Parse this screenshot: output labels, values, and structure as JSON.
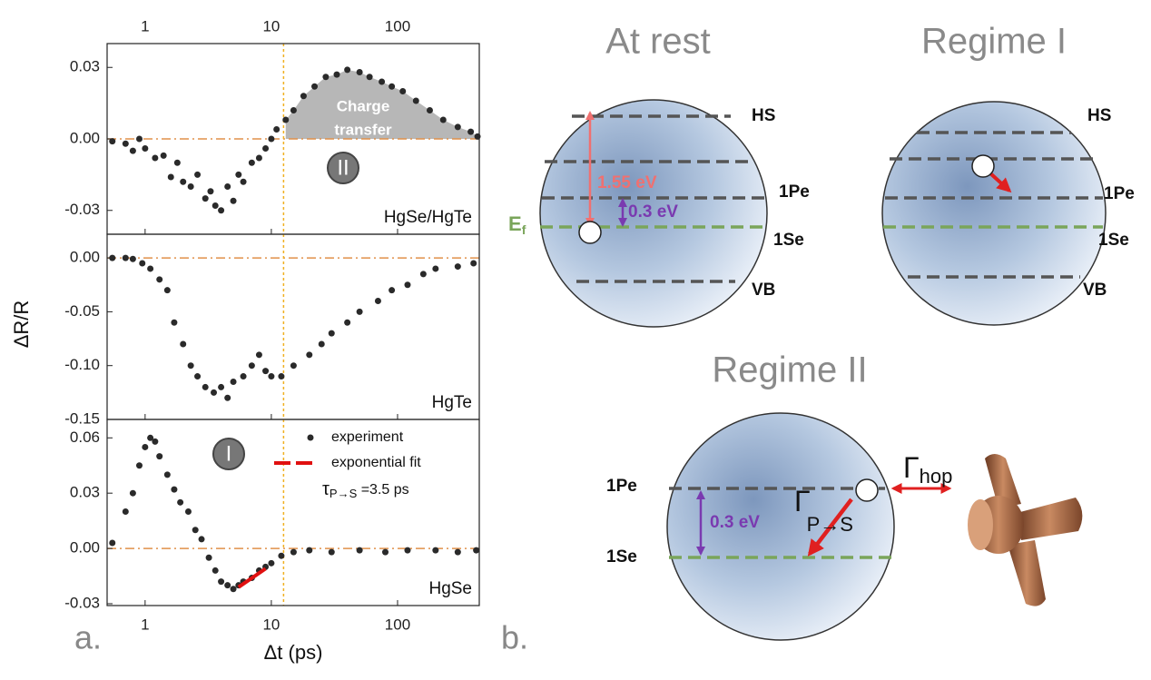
{
  "chart_data": [
    {
      "type": "scatter",
      "label": "HgSe/HgTe",
      "xscale": "log",
      "xlim": [
        0.5,
        444
      ],
      "xticks": [
        1,
        10,
        100
      ],
      "ylim": [
        -0.04,
        0.04
      ],
      "yticks": [
        0.03,
        {
          "value": 0,
          "label": "0.00"
        },
        -0.03
      ],
      "hline": 0,
      "vline": 12.5,
      "shade_color": "#aaaaaa",
      "annotation": [
        "Charge",
        "transfer"
      ],
      "regime": "II",
      "series": [
        {
          "color": "#2a2a2a",
          "x": [
            0.55,
            0.7,
            0.8,
            0.9,
            1.0,
            1.2,
            1.4,
            1.6,
            1.8,
            2.0,
            2.3,
            2.6,
            3.0,
            3.3,
            3.6,
            4.0,
            4.5,
            5.0,
            5.5,
            6.0,
            7.0,
            8.0,
            9.0,
            10,
            11,
            13,
            15,
            18,
            22,
            27,
            33,
            40,
            50,
            60,
            75,
            90,
            110,
            140,
            180,
            230,
            300,
            380,
            430
          ],
          "y": [
            -0.001,
            -0.002,
            -0.005,
            0.0,
            -0.004,
            -0.008,
            -0.007,
            -0.016,
            -0.01,
            -0.018,
            -0.02,
            -0.015,
            -0.025,
            -0.022,
            -0.028,
            -0.03,
            -0.02,
            -0.026,
            -0.015,
            -0.018,
            -0.01,
            -0.008,
            -0.004,
            0.0,
            0.004,
            0.008,
            0.012,
            0.018,
            0.022,
            0.026,
            0.027,
            0.029,
            0.028,
            0.026,
            0.024,
            0.022,
            0.02,
            0.016,
            0.012,
            0.008,
            0.005,
            0.003,
            0.001
          ]
        }
      ]
    },
    {
      "type": "scatter",
      "label": "HgTe",
      "y_label": "ΔR/R",
      "xscale": "log",
      "xlim": [
        0.5,
        444
      ],
      "xticks": [
        1,
        10,
        100
      ],
      "ylim": [
        -0.15,
        0.022
      ],
      "yticks": [
        {
          "value": 0,
          "label": "0.00"
        },
        -0.05,
        {
          "value": -0.1,
          "label": "-0.10"
        },
        -0.15
      ],
      "hline": 0,
      "vline": 12.5,
      "series": [
        {
          "color": "#2a2a2a",
          "x": [
            0.55,
            0.7,
            0.8,
            0.95,
            1.1,
            1.3,
            1.5,
            1.7,
            2.0,
            2.3,
            2.6,
            3.0,
            3.5,
            4.0,
            4.5,
            5.0,
            6.0,
            7.0,
            8.0,
            9.0,
            10,
            12,
            15,
            20,
            25,
            30,
            40,
            50,
            70,
            90,
            120,
            160,
            200,
            300,
            400
          ],
          "y": [
            0.0,
            0.0,
            -0.001,
            -0.005,
            -0.01,
            -0.02,
            -0.03,
            -0.06,
            -0.08,
            -0.1,
            -0.11,
            -0.12,
            -0.125,
            -0.12,
            -0.13,
            -0.115,
            -0.11,
            -0.1,
            -0.09,
            -0.105,
            -0.11,
            -0.11,
            -0.1,
            -0.09,
            -0.08,
            -0.07,
            -0.06,
            -0.05,
            -0.04,
            -0.03,
            -0.025,
            -0.015,
            -0.01,
            -0.008,
            -0.005
          ]
        }
      ]
    },
    {
      "type": "scatter",
      "label": "HgSe",
      "x_label": "Δt (ps)",
      "xscale": "log",
      "xlim": [
        0.5,
        444
      ],
      "xticks": [
        1,
        10,
        100
      ],
      "ylim": [
        -0.031,
        0.07
      ],
      "yticks": [
        0.06,
        0.03,
        {
          "value": 0,
          "label": "0.00"
        },
        -0.03
      ],
      "hline": 0,
      "vline": 12.5,
      "regime": "I",
      "fit_label": {
        "symbol": "τ",
        "subscript": "P→S",
        "text": " =3.5 ps"
      },
      "series": [
        {
          "name": "experiment",
          "color": "#2a2a2a",
          "x": [
            0.55,
            0.7,
            0.8,
            0.9,
            1.0,
            1.1,
            1.2,
            1.3,
            1.5,
            1.7,
            1.9,
            2.2,
            2.5,
            2.8,
            3.2,
            3.6,
            4.0,
            4.5,
            5.0,
            5.5,
            6.0,
            7.0,
            8.0,
            9.0,
            10,
            12,
            15,
            20,
            30,
            50,
            80,
            120,
            200,
            300,
            420
          ],
          "y": [
            0.003,
            0.02,
            0.03,
            0.045,
            0.055,
            0.06,
            0.058,
            0.05,
            0.04,
            0.032,
            0.025,
            0.02,
            0.01,
            0.005,
            -0.005,
            -0.012,
            -0.018,
            -0.02,
            -0.022,
            -0.02,
            -0.018,
            -0.016,
            -0.012,
            -0.01,
            -0.008,
            -0.004,
            -0.002,
            -0.001,
            -0.002,
            -0.001,
            -0.002,
            -0.001,
            -0.001,
            -0.002,
            -0.001
          ]
        },
        {
          "name": "exponential fit",
          "color": "#e01010",
          "line": true,
          "x": [
            5.5,
            9.0
          ],
          "y": [
            -0.021,
            -0.011
          ]
        }
      ]
    }
  ],
  "figure": {
    "panel_a": "a.",
    "panel_b": "b."
  },
  "diagram": {
    "at_rest": {
      "title": "At rest",
      "levels": [
        "HS",
        "1Pe",
        "1Se",
        "VB"
      ],
      "gap": "1.55 eV",
      "spacing": "0.3 eV",
      "fermi": {
        "symbol": "E",
        "subscript": "f"
      }
    },
    "regime_1": {
      "title": "Regime I",
      "levels": [
        "HS",
        "1Pe",
        "1Se",
        "VB"
      ]
    },
    "regime_2": {
      "title": "Regime II",
      "levels": [
        "1Pe",
        "1Se"
      ],
      "spacing": "0.3 eV",
      "hop": {
        "symbol": "Γ",
        "subscript": "hop"
      },
      "relax": {
        "symbol": "Γ",
        "subscript": "P→S"
      }
    }
  }
}
